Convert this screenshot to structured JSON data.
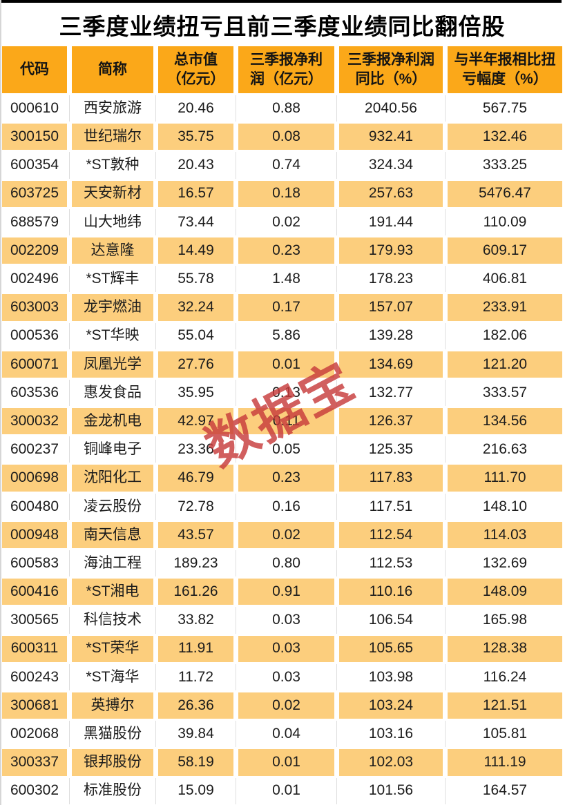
{
  "title": "三季度业绩扭亏且前三季度业绩同比翻倍股",
  "watermark": {
    "text": "数据宝"
  },
  "colors": {
    "header_bg": "#fba819",
    "alt_row_bg": "#fcce7d",
    "watermark_red": "#c83c3c",
    "top_border": "#000000",
    "text": "#1c1c1c"
  },
  "chart_data": {
    "type": "table",
    "title": "三季度业绩扭亏且前三季度业绩同比翻倍股",
    "columns": [
      {
        "id": "code",
        "label": "代码"
      },
      {
        "id": "name",
        "label": "简称"
      },
      {
        "id": "mktcap",
        "label": "总市值\n（亿元）"
      },
      {
        "id": "q3_profit",
        "label": "三季报净利\n润（亿元）"
      },
      {
        "id": "q3_yoy",
        "label": "三季报净利润\n同比（%）"
      },
      {
        "id": "turnaround",
        "label": "与半年报相比扭\n亏幅度（%）"
      }
    ],
    "rows": [
      [
        "000610",
        "西安旅游",
        "20.46",
        "0.88",
        "2040.56",
        "567.75"
      ],
      [
        "300150",
        "世纪瑞尔",
        "35.75",
        "0.08",
        "932.41",
        "132.46"
      ],
      [
        "600354",
        "*ST敦种",
        "20.43",
        "0.74",
        "324.34",
        "333.25"
      ],
      [
        "603725",
        "天安新材",
        "16.57",
        "0.18",
        "257.63",
        "5476.47"
      ],
      [
        "688579",
        "山大地纬",
        "73.44",
        "0.02",
        "191.44",
        "110.09"
      ],
      [
        "002209",
        "达意隆",
        "14.49",
        "0.23",
        "179.93",
        "609.17"
      ],
      [
        "002496",
        "*ST辉丰",
        "55.78",
        "1.48",
        "178.23",
        "406.81"
      ],
      [
        "603003",
        "龙宇燃油",
        "32.24",
        "0.17",
        "157.07",
        "233.91"
      ],
      [
        "000536",
        "*ST华映",
        "55.04",
        "5.86",
        "139.28",
        "182.06"
      ],
      [
        "600071",
        "凤凰光学",
        "27.76",
        "0.01",
        "134.69",
        "121.20"
      ],
      [
        "603536",
        "惠发食品",
        "35.95",
        "0.13",
        "132.77",
        "333.57"
      ],
      [
        "300032",
        "金龙机电",
        "42.97",
        "0.11",
        "126.37",
        "134.56"
      ],
      [
        "600237",
        "铜峰电子",
        "23.36",
        "0.05",
        "125.35",
        "216.63"
      ],
      [
        "000698",
        "沈阳化工",
        "46.79",
        "0.23",
        "117.83",
        "111.70"
      ],
      [
        "600480",
        "凌云股份",
        "72.78",
        "0.16",
        "117.51",
        "148.10"
      ],
      [
        "000948",
        "南天信息",
        "43.57",
        "0.02",
        "112.54",
        "114.03"
      ],
      [
        "600583",
        "海油工程",
        "189.23",
        "0.80",
        "112.53",
        "132.69"
      ],
      [
        "600416",
        "*ST湘电",
        "161.26",
        "0.91",
        "110.16",
        "148.09"
      ],
      [
        "300565",
        "科信技术",
        "33.82",
        "0.03",
        "106.54",
        "165.98"
      ],
      [
        "600311",
        "*ST荣华",
        "11.91",
        "0.03",
        "105.65",
        "128.38"
      ],
      [
        "600243",
        "*ST海华",
        "11.72",
        "0.03",
        "103.98",
        "116.24"
      ],
      [
        "300681",
        "英搏尔",
        "26.36",
        "0.02",
        "103.24",
        "121.51"
      ],
      [
        "002068",
        "黑猫股份",
        "39.84",
        "0.04",
        "103.16",
        "105.81"
      ],
      [
        "300337",
        "银邦股份",
        "58.19",
        "0.01",
        "102.03",
        "111.19"
      ],
      [
        "600302",
        "标准股份",
        "15.09",
        "0.01",
        "101.56",
        "164.57"
      ]
    ]
  }
}
